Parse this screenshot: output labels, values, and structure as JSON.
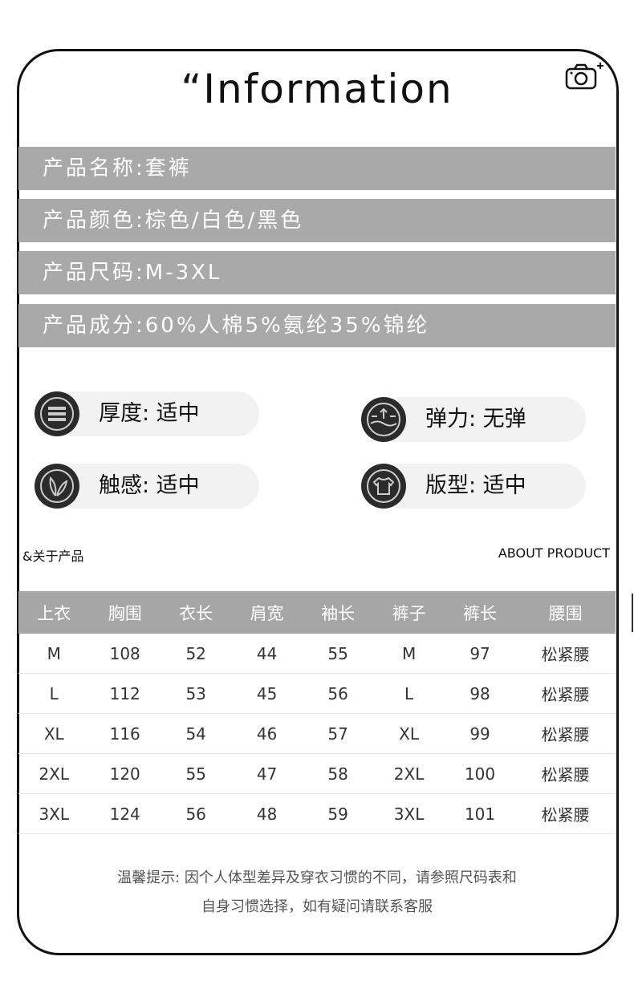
{
  "title": "“Information",
  "icons": {
    "top_right": "camera-plus-icon"
  },
  "info_bars": [
    "产品名称:套裤",
    "产品颜色:棕色/白色/黑色",
    "产品尺码:M-3XL",
    "产品成分:60%人棉5%氨纶35%锦纶"
  ],
  "features": [
    {
      "icon": "thickness-lines-icon",
      "text": "厚度: 适中"
    },
    {
      "icon": "elasticity-arrows-icon",
      "text": "弹力: 无弹"
    },
    {
      "icon": "feather-touch-icon",
      "text": "触感: 适中"
    },
    {
      "icon": "tshirt-fit-icon",
      "text": "版型: 适中"
    }
  ],
  "section": {
    "left": "&关于产品",
    "right": "ABOUT PRODUCT"
  },
  "table": {
    "headers": [
      "上衣",
      "胸围",
      "衣长",
      "肩宽",
      "袖长",
      "裤子",
      "裤长",
      "腰围"
    ],
    "rows": [
      [
        "M",
        "108",
        "52",
        "44",
        "55",
        "M",
        "97",
        "松紧腰"
      ],
      [
        "L",
        "112",
        "53",
        "45",
        "56",
        "L",
        "98",
        "松紧腰"
      ],
      [
        "XL",
        "116",
        "54",
        "46",
        "57",
        "XL",
        "99",
        "松紧腰"
      ],
      [
        "2XL",
        "120",
        "55",
        "47",
        "58",
        "2XL",
        "100",
        "松紧腰"
      ],
      [
        "3XL",
        "124",
        "56",
        "48",
        "59",
        "3XL",
        "101",
        "松紧腰"
      ]
    ]
  },
  "note": [
    "温馨提示: 因个人体型差异及穿衣习惯的不同，请参照尺码表和",
    "自身习惯选择，如有疑问请联系客服"
  ],
  "colors": {
    "bar": "#a9a9a9",
    "icon": "#2b2b2b"
  }
}
